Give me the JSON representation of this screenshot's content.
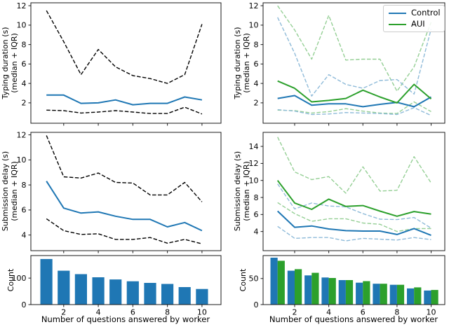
{
  "figure": {
    "xlabel": "Number of questions answered by worker",
    "x_values": [
      1,
      2,
      3,
      4,
      5,
      6,
      7,
      8,
      9,
      10
    ],
    "x_ticks": [
      2,
      4,
      6,
      8,
      10
    ]
  },
  "legend": {
    "entries": [
      {
        "label": "Control",
        "color": "#1f77b4"
      },
      {
        "label": "AUI",
        "color": "#2ca02c"
      }
    ]
  },
  "colors": {
    "control": "#1f77b4",
    "aui": "#2ca02c",
    "control_iqr": "#8fbbd9",
    "aui_iqr": "#95cf95",
    "pooled_iqr": "#000000",
    "spine": "#1a1a1a"
  },
  "chart_data": [
    {
      "id": "typing-duration-pooled",
      "geom": "L1",
      "type": "line",
      "ylabel_line1": "Typing duration (s)",
      "ylabel_line2": "(median + IQR)",
      "x": [
        1,
        2,
        3,
        4,
        5,
        6,
        7,
        8,
        9,
        10
      ],
      "xlim": [
        0.1,
        11.1
      ],
      "ylim": [
        -0.1,
        12.3
      ],
      "yticks": [
        2,
        4,
        6,
        8,
        10,
        12
      ],
      "xticks": [
        2,
        4,
        6,
        8,
        10
      ],
      "xtick_labels": false,
      "series": [
        {
          "name": "IQR upper",
          "color": "#000000",
          "dash": true,
          "width": 1.4,
          "values": [
            11.5,
            8.3,
            4.9,
            7.5,
            5.7,
            4.8,
            4.5,
            4.0,
            4.9,
            10.1
          ]
        },
        {
          "name": "Median",
          "color": "#1f77b4",
          "dash": false,
          "width": 2,
          "values": [
            2.8,
            2.8,
            1.95,
            2.0,
            2.3,
            1.8,
            1.95,
            1.95,
            2.6,
            2.3
          ]
        },
        {
          "name": "IQR lower",
          "color": "#000000",
          "dash": true,
          "width": 1.4,
          "values": [
            1.25,
            1.2,
            0.95,
            1.05,
            1.2,
            1.05,
            0.9,
            0.9,
            1.55,
            0.85
          ]
        }
      ]
    },
    {
      "id": "typing-duration-by-condition",
      "geom": "R1",
      "type": "line",
      "ylabel_line1": "Typing duration (s)",
      "ylabel_line2": "(median + IQR)",
      "x": [
        1,
        2,
        3,
        4,
        5,
        6,
        7,
        8,
        9,
        10
      ],
      "xlim": [
        0.15,
        10.8
      ],
      "ylim": [
        -0.1,
        12.3
      ],
      "yticks": [
        2,
        4,
        6,
        8,
        10,
        12
      ],
      "xticks": [
        2,
        4,
        6,
        8,
        10
      ],
      "xtick_labels": false,
      "series": [
        {
          "name": "AUI IQR upper",
          "color": "#95cf95",
          "dash": true,
          "width": 1.4,
          "values": [
            12.0,
            9.5,
            6.5,
            11.0,
            6.4,
            6.5,
            6.5,
            3.2,
            5.7,
            10.3
          ]
        },
        {
          "name": "Control IQR upper",
          "color": "#8fbbd9",
          "dash": true,
          "width": 1.4,
          "values": [
            10.8,
            7.1,
            2.7,
            4.9,
            3.9,
            3.5,
            4.3,
            4.4,
            2.9,
            9.6
          ]
        },
        {
          "name": "AUI IQR lower",
          "color": "#95cf95",
          "dash": true,
          "width": 1.4,
          "values": [
            1.25,
            1.2,
            0.95,
            1.1,
            1.4,
            1.15,
            0.95,
            0.9,
            2.1,
            1.1
          ]
        },
        {
          "name": "Control IQR lower",
          "color": "#8fbbd9",
          "dash": true,
          "width": 1.4,
          "values": [
            1.3,
            1.15,
            0.8,
            0.85,
            1.0,
            0.95,
            0.9,
            0.8,
            1.5,
            0.7
          ]
        },
        {
          "name": "Control median",
          "color": "#1f77b4",
          "dash": false,
          "width": 2,
          "values": [
            2.45,
            2.75,
            1.75,
            1.9,
            1.9,
            1.6,
            1.85,
            2.05,
            1.6,
            2.6
          ]
        },
        {
          "name": "AUI median",
          "color": "#2ca02c",
          "dash": false,
          "width": 2,
          "values": [
            4.25,
            3.5,
            2.1,
            2.25,
            2.45,
            3.3,
            2.6,
            2.0,
            3.9,
            2.4
          ]
        }
      ]
    },
    {
      "id": "submission-delay-pooled",
      "geom": "L2",
      "type": "line",
      "ylabel_line1": "Submission delay (s)",
      "ylabel_line2": "(median + IQR)",
      "x": [
        1,
        2,
        3,
        4,
        5,
        6,
        7,
        8,
        9,
        10
      ],
      "xlim": [
        0.1,
        11.1
      ],
      "ylim": [
        2.75,
        12.2
      ],
      "yticks": [
        4,
        6,
        8,
        10,
        12
      ],
      "xticks": [
        2,
        4,
        6,
        8,
        10
      ],
      "xtick_labels": false,
      "series": [
        {
          "name": "IQR upper",
          "color": "#000000",
          "dash": true,
          "width": 1.4,
          "values": [
            11.95,
            8.65,
            8.55,
            8.95,
            8.2,
            8.15,
            7.2,
            7.2,
            8.2,
            6.65
          ]
        },
        {
          "name": "Median",
          "color": "#1f77b4",
          "dash": false,
          "width": 2,
          "values": [
            8.3,
            6.15,
            5.75,
            5.85,
            5.5,
            5.25,
            5.25,
            4.65,
            5.0,
            4.35
          ]
        },
        {
          "name": "IQR lower",
          "color": "#000000",
          "dash": true,
          "width": 1.4,
          "values": [
            5.3,
            4.35,
            4.05,
            4.1,
            3.65,
            3.65,
            3.8,
            3.35,
            3.65,
            3.3
          ]
        }
      ]
    },
    {
      "id": "submission-delay-by-condition",
      "geom": "R2",
      "type": "line",
      "ylabel_line1": "Submission delay (s)",
      "ylabel_line2": "(median + IQR)",
      "x": [
        1,
        2,
        3,
        4,
        5,
        6,
        7,
        8,
        9,
        10
      ],
      "xlim": [
        0.15,
        10.8
      ],
      "ylim": [
        1.75,
        15.65
      ],
      "yticks": [
        4,
        6,
        8,
        10,
        12,
        14
      ],
      "xticks": [
        2,
        4,
        6,
        8,
        10
      ],
      "xtick_labels": false,
      "series": [
        {
          "name": "AUI IQR upper",
          "color": "#95cf95",
          "dash": true,
          "width": 1.4,
          "values": [
            15.1,
            11.0,
            10.1,
            10.45,
            8.5,
            11.6,
            8.75,
            8.85,
            12.8,
            9.7
          ]
        },
        {
          "name": "Control IQR upper",
          "color": "#8fbbd9",
          "dash": true,
          "width": 1.4,
          "values": [
            9.6,
            6.65,
            7.35,
            7.0,
            6.9,
            6.1,
            5.45,
            5.4,
            5.65,
            4.4
          ]
        },
        {
          "name": "AUI IQR lower",
          "color": "#95cf95",
          "dash": true,
          "width": 1.4,
          "values": [
            7.4,
            6.1,
            5.2,
            5.5,
            5.5,
            5.0,
            4.85,
            4.0,
            4.35,
            4.35
          ]
        },
        {
          "name": "Control IQR lower",
          "color": "#8fbbd9",
          "dash": true,
          "width": 1.4,
          "values": [
            4.6,
            3.2,
            3.3,
            3.3,
            2.9,
            3.2,
            3.1,
            3.0,
            3.3,
            3.05
          ]
        },
        {
          "name": "Control median",
          "color": "#1f77b4",
          "dash": false,
          "width": 2,
          "values": [
            6.4,
            4.5,
            4.65,
            4.3,
            4.1,
            4.05,
            4.05,
            3.65,
            4.35,
            3.55
          ]
        },
        {
          "name": "AUI median",
          "color": "#2ca02c",
          "dash": false,
          "width": 2,
          "values": [
            10.0,
            7.35,
            6.6,
            7.8,
            6.95,
            7.05,
            6.4,
            5.8,
            6.35,
            6.05
          ]
        }
      ]
    },
    {
      "id": "count-pooled",
      "geom": "L3",
      "type": "bar",
      "ylabel_line1": "Count",
      "ylabel_line2": "",
      "x": [
        1,
        2,
        3,
        4,
        5,
        6,
        7,
        8,
        9,
        10
      ],
      "xlim": [
        0.1,
        11.1
      ],
      "ylim": [
        0,
        185
      ],
      "yticks": [
        0,
        100
      ],
      "xticks": [
        2,
        4,
        6,
        8,
        10
      ],
      "xtick_labels": true,
      "bar_width": 0.7,
      "series": [
        {
          "name": "Count",
          "color": "#1f77b4",
          "values": [
            172,
            128,
            115,
            103,
            95,
            88,
            82,
            78,
            66,
            59
          ]
        }
      ]
    },
    {
      "id": "count-by-condition",
      "geom": "R3",
      "type": "bar",
      "ylabel_line1": "Count",
      "ylabel_line2": "",
      "x": [
        1,
        2,
        3,
        4,
        5,
        6,
        7,
        8,
        9,
        10
      ],
      "xlim": [
        0.15,
        10.8
      ],
      "ylim": [
        0,
        94
      ],
      "yticks": [
        0,
        50
      ],
      "xticks": [
        2,
        4,
        6,
        8,
        10
      ],
      "xtick_labels": true,
      "bar_width": 0.42,
      "series": [
        {
          "name": "Control",
          "color": "#1f77b4",
          "values": [
            90,
            65,
            56,
            52,
            47,
            42,
            40,
            38,
            31,
            27
          ]
        },
        {
          "name": "AUI",
          "color": "#2ca02c",
          "values": [
            84,
            68,
            61,
            51,
            47,
            45,
            40,
            38,
            33,
            28
          ]
        }
      ]
    }
  ]
}
